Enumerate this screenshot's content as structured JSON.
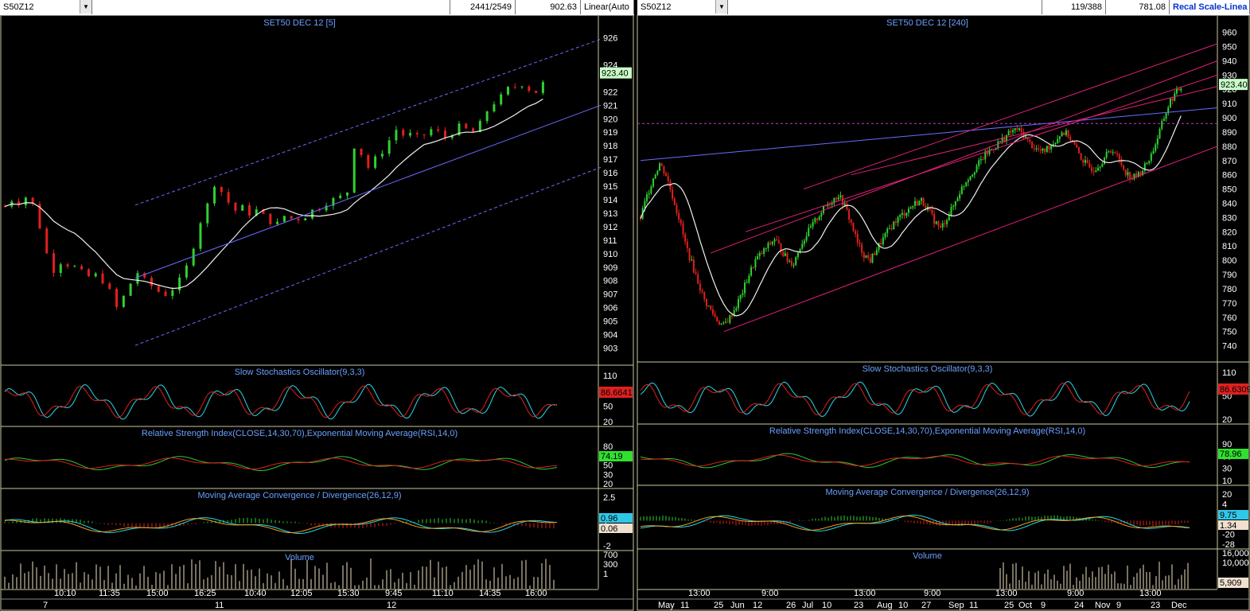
{
  "colors": {
    "bg": "#000000",
    "frame": "#c8c8a0",
    "title": "#6aa0ff",
    "axis": "#ffffff",
    "up": "#2fd12f",
    "down": "#e0201e",
    "ma": "#f0f0f0",
    "trend": "#6b6bff",
    "channel": "#e0207a",
    "k": "#27d9e8",
    "d": "#e0201e",
    "rsi": "#30c830",
    "rsiema": "#e0201e",
    "hline": "#c040c0"
  },
  "left": {
    "symbol": "S50Z12",
    "counter": "2441/2549",
    "price_readout": "902.63",
    "scale_mode": "Linear(Auto",
    "chart_title": "SET50 DEC 12  [5]",
    "price_ticks": [
      "926",
      "924",
      "922",
      "921",
      "920",
      "919",
      "918",
      "917",
      "916",
      "915",
      "914",
      "913",
      "912",
      "911",
      "910",
      "909",
      "908",
      "907",
      "906",
      "905",
      "904",
      "903"
    ],
    "last_price": "923.40",
    "stoch_title": "Slow Stochastics Oscillator(9,3,3)",
    "stoch_ticks": [
      "110",
      "80",
      "50",
      "20"
    ],
    "stoch_value": "86.6641",
    "rsi_title": "Relative Strength Index(CLOSE,14,30,70),Exponential Moving Average(RSI,14,0)",
    "rsi_ticks": [
      "80",
      "70",
      "50",
      "30",
      "20"
    ],
    "rsi_value": "74.19",
    "macd_title": "Moving Average Convergence / Divergence(26,12,9)",
    "macd_ticks": [
      "2.5",
      "1",
      "-2"
    ],
    "macd_value1": "0.96",
    "macd_value2": "0.06",
    "vol_title": "Volume",
    "vol_ticks": [
      "700",
      "300",
      "1"
    ],
    "time_labels": [
      "10:10",
      "11:35",
      "15:00",
      "16:25",
      "10:40",
      "12:05",
      "15:30",
      "9:45",
      "11:10",
      "14:35",
      "16:00"
    ],
    "day_labels": [
      "7",
      "11",
      "12"
    ]
  },
  "right": {
    "symbol": "S50Z12",
    "counter": "119/388",
    "price_readout": "781.08",
    "scale_mode": "Recal Scale-Linea",
    "chart_title": "SET50 DEC 12  [240]",
    "price_ticks": [
      "960",
      "950",
      "940",
      "930",
      "920",
      "910",
      "900",
      "890",
      "880",
      "870",
      "860",
      "850",
      "840",
      "830",
      "820",
      "810",
      "800",
      "790",
      "780",
      "770",
      "760",
      "750",
      "740"
    ],
    "last_price": "923.40",
    "stoch_title": "Slow Stochastics Oscillator(9,3,3)",
    "stoch_ticks": [
      "110",
      "50",
      "20"
    ],
    "stoch_value": "86.6309",
    "rsi_title": "Relative Strength Index(CLOSE,14,30,70),Exponential Moving Average(RSI,14,0)",
    "rsi_ticks": [
      "90",
      "50",
      "30",
      "10"
    ],
    "rsi_value": "78.96",
    "macd_title": "Moving Average Convergence / Divergence(26,12,9)",
    "macd_ticks": [
      "20",
      "4",
      "-4",
      "-12",
      "-20",
      "-28"
    ],
    "macd_value1": "9.75",
    "macd_value2": "1.34",
    "vol_title": "Volume",
    "vol_ticks": [
      "16,000",
      "10,000"
    ],
    "vol_value": "5,909",
    "time_labels": [
      "13:00",
      "9:00",
      "13:00",
      "9:00",
      "13:00",
      "9:00",
      "13:00"
    ],
    "date_labels": [
      "May",
      "11",
      "25",
      "Jun",
      "12",
      "26",
      "Jul",
      "10",
      "23",
      "Aug",
      "10",
      "27",
      "Sep",
      "11",
      "25",
      "Oct",
      "9",
      "24",
      "Nov",
      "9",
      "23",
      "Dec"
    ]
  },
  "chart_data": [
    {
      "type": "candlestick",
      "title": "SET50 DEC 12  [5]",
      "interval": "5 min",
      "y_range": [
        902,
        927
      ],
      "last": 923.4,
      "close_path": [
        913.5,
        914,
        913.8,
        914.2,
        913.6,
        912,
        910,
        908.8,
        909.4,
        909.2,
        909,
        908.6,
        908.3,
        908.4,
        908,
        907.2,
        906,
        906.8,
        907.8,
        908.6,
        908,
        907.6,
        907.2,
        907,
        907.4,
        908,
        909,
        910.6,
        912.4,
        913.6,
        915.2,
        914.6,
        913.8,
        913.2,
        913.4,
        913,
        913.2,
        912.8,
        912.4,
        912.2,
        912.8,
        912.6,
        912.6,
        912.8,
        913.2,
        913.4,
        913.8,
        914,
        914.2,
        914.6,
        918,
        917.4,
        916.4,
        917,
        917.6,
        918.4,
        919.2,
        918.8,
        918.8,
        918.6,
        918.8,
        919.2,
        919,
        918.6,
        919,
        919.4,
        919.2,
        919,
        919.6,
        920.6,
        921.2,
        921.6,
        922.2,
        922.4,
        922.6,
        922.2,
        922,
        922.6,
        923.4
      ]
    },
    {
      "type": "candlestick",
      "title": "SET50 DEC 12  [240]",
      "interval": "240 min",
      "y_range": [
        735,
        965
      ],
      "last": 923.4,
      "close_path": [
        830,
        845,
        858,
        868,
        860,
        845,
        830,
        812,
        798,
        785,
        772,
        765,
        758,
        754,
        760,
        768,
        778,
        790,
        800,
        805,
        810,
        815,
        808,
        800,
        798,
        810,
        818,
        825,
        832,
        838,
        842,
        846,
        838,
        826,
        812,
        804,
        800,
        808,
        815,
        822,
        828,
        832,
        836,
        840,
        842,
        836,
        828,
        822,
        830,
        838,
        848,
        856,
        862,
        868,
        874,
        878,
        882,
        886,
        890,
        892,
        888,
        882,
        878,
        876,
        880,
        884,
        890,
        888,
        880,
        872,
        866,
        864,
        868,
        874,
        878,
        870,
        862,
        858,
        860,
        866,
        874,
        886,
        900,
        912,
        918,
        923.4
      ]
    }
  ]
}
